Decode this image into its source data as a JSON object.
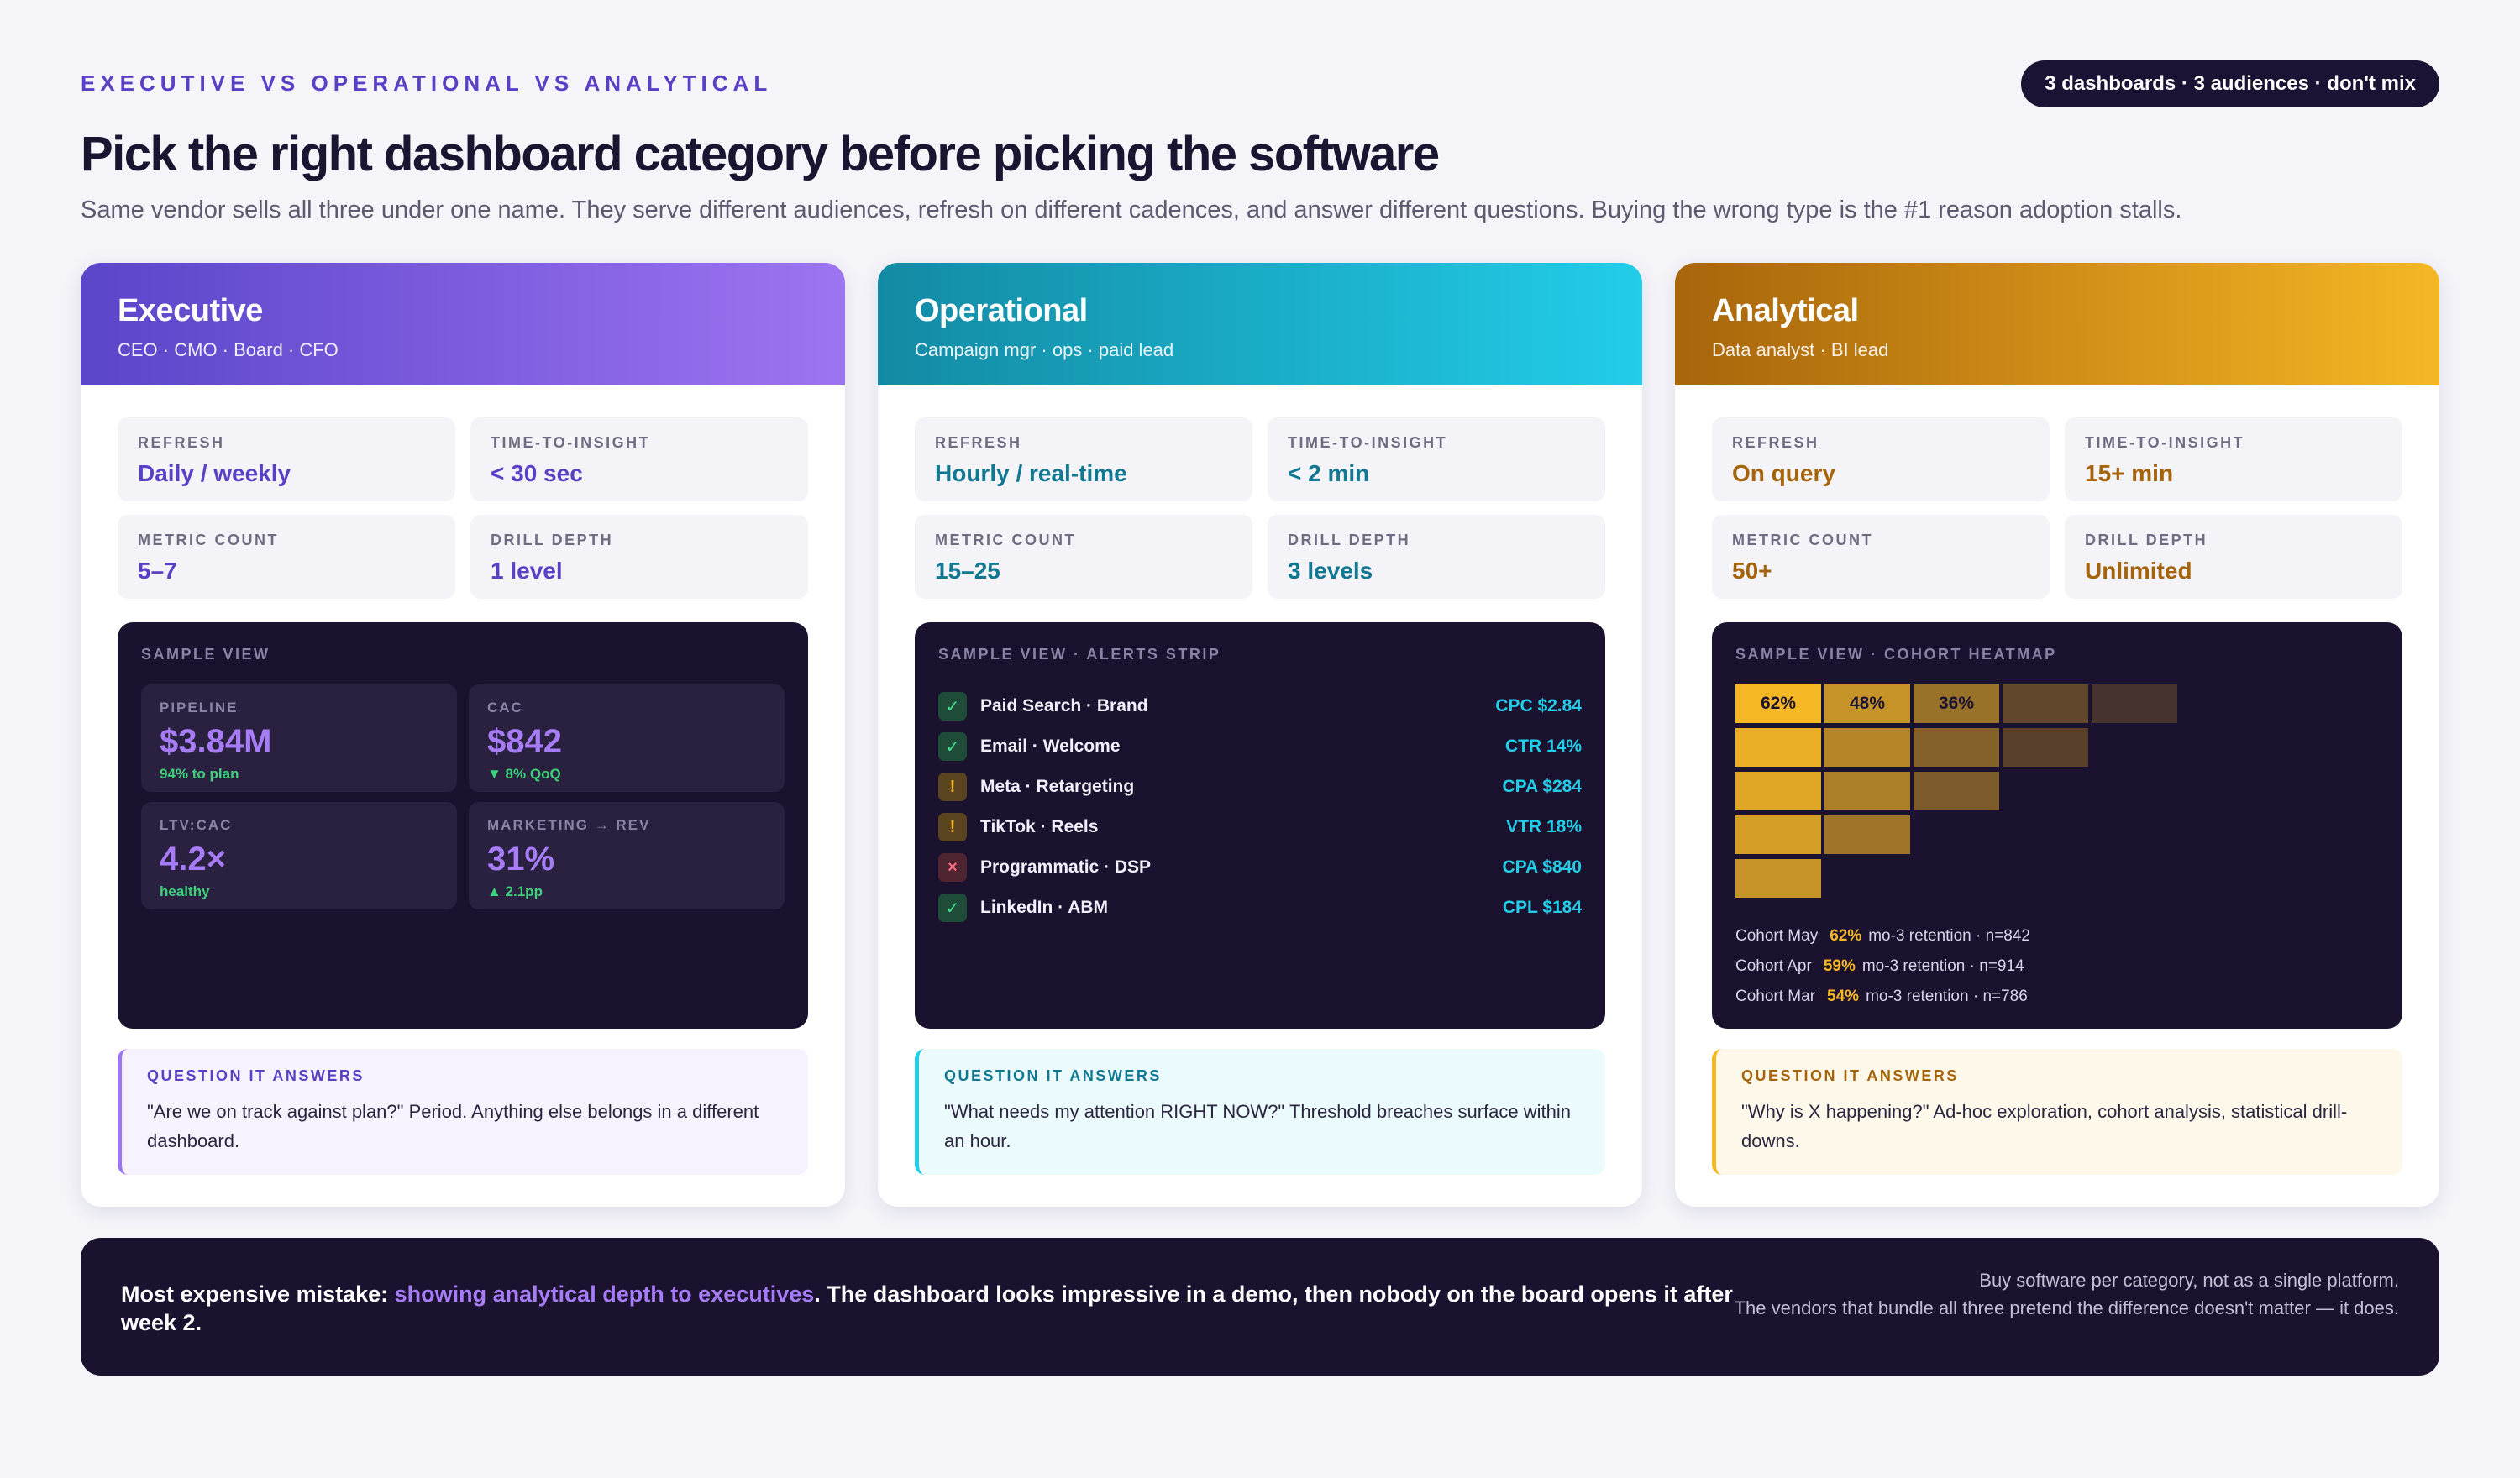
{
  "header": {
    "eyebrow": "EXECUTIVE VS OPERATIONAL VS ANALYTICAL",
    "pill": "3 dashboards · 3 audiences · don't mix",
    "title": "Pick the right dashboard category before picking the software",
    "subtitle": "Same vendor sells all three under one name. They serve different audiences, refresh on different cadences, and answer different questions. Buying the wrong type is the #1 reason adoption stalls."
  },
  "cards": {
    "executive": {
      "name": "Executive",
      "audience": "CEO · CMO · Board · CFO",
      "stats": [
        {
          "label": "REFRESH",
          "value": "Daily / weekly"
        },
        {
          "label": "TIME-TO-INSIGHT",
          "value": "< 30 sec"
        },
        {
          "label": "METRIC COUNT",
          "value": "5–7"
        },
        {
          "label": "DRILL DEPTH",
          "value": "1 level"
        }
      ],
      "sample_label": "SAMPLE VIEW",
      "kpis": [
        {
          "label": "PIPELINE",
          "value": "$3.84M",
          "note": "94% to plan"
        },
        {
          "label": "CAC",
          "value": "$842",
          "note": "▼ 8% QoQ"
        },
        {
          "label": "LTV:CAC",
          "value": "4.2×",
          "note": "healthy"
        },
        {
          "label": "MARKETING → REV",
          "value": "31%",
          "note": "▲ 2.1pp"
        }
      ],
      "question_label": "QUESTION IT ANSWERS",
      "question": "\"Are we on track against plan?\" Period. Anything else belongs in a different dashboard.",
      "accent": "#9d74f2"
    },
    "operational": {
      "name": "Operational",
      "audience": "Campaign mgr · ops · paid lead",
      "stats": [
        {
          "label": "REFRESH",
          "value": "Hourly / real-time"
        },
        {
          "label": "TIME-TO-INSIGHT",
          "value": "< 2 min"
        },
        {
          "label": "METRIC COUNT",
          "value": "15–25"
        },
        {
          "label": "DRILL DEPTH",
          "value": "3 levels"
        }
      ],
      "sample_label": "SAMPLE VIEW · ALERTS STRIP",
      "alerts": [
        {
          "status": "ok",
          "icon": "✓",
          "name": "Paid Search · Brand",
          "metric": "CPC $2.84"
        },
        {
          "status": "ok",
          "icon": "✓",
          "name": "Email · Welcome",
          "metric": "CTR 14%"
        },
        {
          "status": "warn",
          "icon": "!",
          "name": "Meta · Retargeting",
          "metric": "CPA $284"
        },
        {
          "status": "warn",
          "icon": "!",
          "name": "TikTok · Reels",
          "metric": "VTR 18%"
        },
        {
          "status": "bad",
          "icon": "×",
          "name": "Programmatic · DSP",
          "metric": "CPA $840"
        },
        {
          "status": "ok",
          "icon": "✓",
          "name": "LinkedIn · ABM",
          "metric": "CPL $184"
        }
      ],
      "question_label": "QUESTION IT ANSWERS",
      "question": "\"What needs my attention RIGHT NOW?\" Threshold breaches surface within an hour.",
      "accent": "#22cde8"
    },
    "analytical": {
      "name": "Analytical",
      "audience": "Data analyst · BI lead",
      "stats": [
        {
          "label": "REFRESH",
          "value": "On query"
        },
        {
          "label": "TIME-TO-INSIGHT",
          "value": "15+ min"
        },
        {
          "label": "METRIC COUNT",
          "value": "50+"
        },
        {
          "label": "DRILL DEPTH",
          "value": "Unlimited"
        }
      ],
      "sample_label": "SAMPLE VIEW · COHORT HEATMAP",
      "heatmap": {
        "labels": [
          "62%",
          "48%",
          "36%"
        ],
        "rows": [
          [
            1.0,
            0.78,
            0.58,
            0.32,
            0.2
          ],
          [
            0.95,
            0.7,
            0.48,
            0.28
          ],
          [
            0.9,
            0.66,
            0.44
          ],
          [
            0.85,
            0.6
          ],
          [
            0.78
          ]
        ],
        "color": "#f5b724",
        "background": "#1b1230"
      },
      "cohorts": [
        {
          "name": "Cohort May",
          "pct": "62%",
          "rest": "mo-3 retention · n=842"
        },
        {
          "name": "Cohort Apr",
          "pct": "59%",
          "rest": "mo-3 retention · n=914"
        },
        {
          "name": "Cohort Mar",
          "pct": "54%",
          "rest": "mo-3 retention · n=786"
        }
      ],
      "question_label": "QUESTION IT ANSWERS",
      "question": "\"Why is X happening?\" Ad-hoc exploration, cohort analysis, statistical drill-downs.",
      "accent": "#f5b724"
    }
  },
  "footer": {
    "lead": "Most expensive mistake: ",
    "highlight": "showing analytical depth to executives",
    "rest": ". The dashboard looks impressive in a demo, then nobody on the board opens it after week 2.",
    "side_line1": "Buy software per category, not as a single platform.",
    "side_line2": "The vendors that bundle all three pretend the difference doesn't matter — it does."
  }
}
